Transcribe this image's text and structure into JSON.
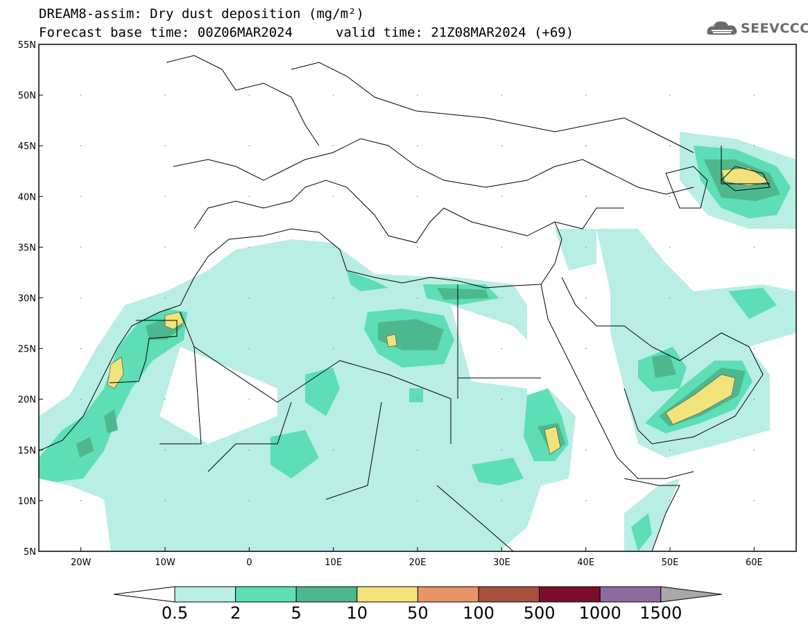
{
  "title": {
    "line1": "DREAM8-assim: Dry dust deposition (mg/m²)",
    "line2": "Forecast base time: 00Z06MAR2024",
    "line2b": "valid time: 21Z08MAR2024 (+69)"
  },
  "logo": {
    "text": "SEEVCCC",
    "icon": "cloud-icon"
  },
  "axes": {
    "lat_labels": [
      "55N",
      "50N",
      "45N",
      "40N",
      "35N",
      "30N",
      "25N",
      "20N",
      "15N",
      "10N",
      "5N"
    ],
    "lon_labels": [
      "20W",
      "10W",
      "0",
      "10E",
      "20E",
      "30E",
      "40E",
      "50E",
      "60E"
    ],
    "lat_range": [
      5,
      55
    ],
    "lon_range": [
      -25,
      65
    ]
  },
  "colorbar": {
    "labels": [
      "0.5",
      "2",
      "5",
      "10",
      "50",
      "100",
      "500",
      "1000",
      "1500"
    ],
    "colors": [
      "#b8eee3",
      "#5ddeb4",
      "#4db88e",
      "#f2e27a",
      "#e89468",
      "#ab4e3e",
      "#7c0e2a",
      "#8c6aa0"
    ],
    "below_color": "#ffffff",
    "above_color": "#a8a8a8"
  },
  "colors": {
    "level1": "#b8eee3",
    "level2": "#5ddeb4",
    "level3": "#4db88e",
    "level4": "#f2e27a"
  }
}
